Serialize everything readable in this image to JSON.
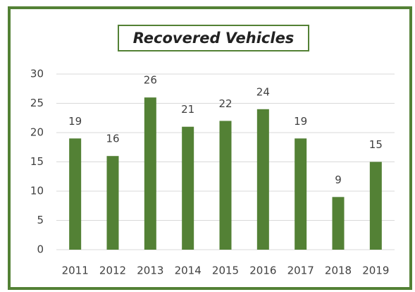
{
  "chart_data": {
    "type": "bar",
    "title": "Recovered Vehicles",
    "categories": [
      "2011",
      "2012",
      "2013",
      "2014",
      "2015",
      "2016",
      "2017",
      "2018",
      "2019"
    ],
    "values": [
      19,
      16,
      26,
      21,
      22,
      24,
      19,
      9,
      15
    ],
    "color": "#538135",
    "ylim": [
      0,
      30
    ],
    "yticks": [
      0,
      5,
      10,
      15,
      20,
      25,
      30
    ],
    "grid": true,
    "data_labels": true
  }
}
